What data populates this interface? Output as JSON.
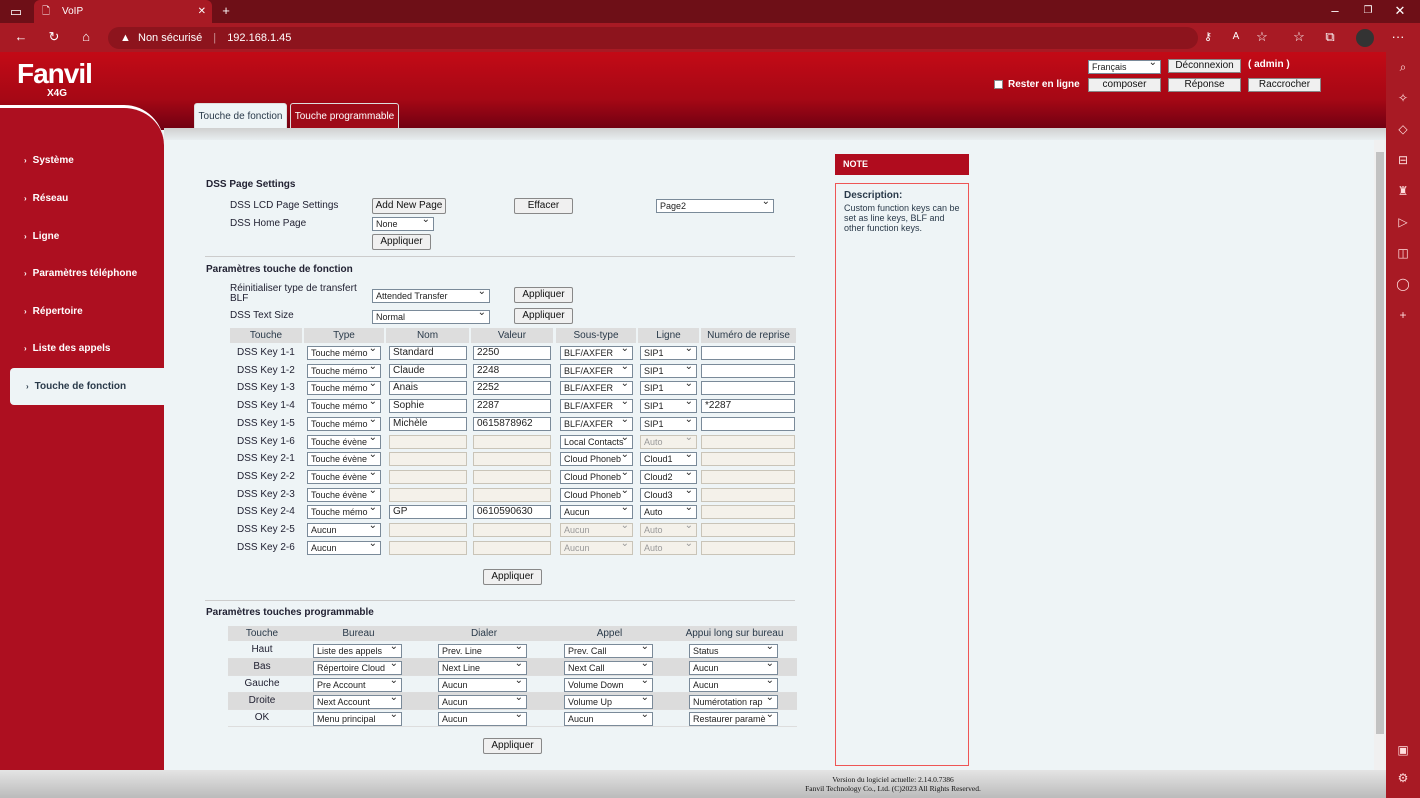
{
  "browser": {
    "tab_title": "VoIP",
    "security": "Non sécurisé",
    "url": "192.168.1.45"
  },
  "header": {
    "logo": "Fanvil",
    "model": "X4G",
    "language": "Français",
    "logout": "Déconnexion",
    "user": "( admin )",
    "stay_online": "Rester en ligne",
    "dial": "composer",
    "answer": "Réponse",
    "hangup": "Raccrocher"
  },
  "tabs": [
    {
      "label": "Touche de fonction"
    },
    {
      "label": "Touche programmable"
    }
  ],
  "sidebar": {
    "items": [
      {
        "label": "Système"
      },
      {
        "label": "Réseau"
      },
      {
        "label": "Ligne"
      },
      {
        "label": "Paramètres téléphone"
      },
      {
        "label": "Répertoire"
      },
      {
        "label": "Liste des appels"
      },
      {
        "label": "Touche de fonction"
      }
    ]
  },
  "dss_page": {
    "title": "DSS Page Settings",
    "lcd_label": "DSS LCD Page Settings",
    "add_page": "Add New Page",
    "clear": "Effacer",
    "page_select": "Page2",
    "home_label": "DSS Home Page",
    "home_value": "None",
    "apply": "Appliquer"
  },
  "fkey": {
    "title": "Paramètres touche de fonction",
    "blf_label": "Réinitialiser type de transfert BLF",
    "blf_value": "Attended Transfer",
    "text_size_label": "DSS Text Size",
    "text_size_value": "Normal",
    "apply": "Appliquer",
    "columns": [
      "Touche",
      "Type",
      "Nom",
      "Valeur",
      "Sous-type",
      "Ligne",
      "Numéro de reprise"
    ],
    "rows": [
      {
        "key": "DSS Key 1-1",
        "type": "Touche mémo",
        "name": "Standard",
        "value": "2250",
        "subtype": "BLF/AXFER",
        "line": "SIP1",
        "pickup": "",
        "enabled": true
      },
      {
        "key": "DSS Key 1-2",
        "type": "Touche mémo",
        "name": "Claude",
        "value": "2248",
        "subtype": "BLF/AXFER",
        "line": "SIP1",
        "pickup": "",
        "enabled": true
      },
      {
        "key": "DSS Key 1-3",
        "type": "Touche mémo",
        "name": "Anais",
        "value": "2252",
        "subtype": "BLF/AXFER",
        "line": "SIP1",
        "pickup": "",
        "enabled": true
      },
      {
        "key": "DSS Key 1-4",
        "type": "Touche mémo",
        "name": "Sophie",
        "value": "2287",
        "subtype": "BLF/AXFER",
        "line": "SIP1",
        "pickup": "*2287",
        "enabled": true
      },
      {
        "key": "DSS Key 1-5",
        "type": "Touche mémo",
        "name": "Michèle",
        "value": "0615878962",
        "subtype": "BLF/AXFER",
        "line": "SIP1",
        "pickup": "",
        "enabled": true
      },
      {
        "key": "DSS Key 1-6",
        "type": "Touche évène",
        "name": "",
        "value": "",
        "subtype": "Local Contacts",
        "line": "Auto",
        "pickup": "",
        "enabled": false,
        "line_disabled": true
      },
      {
        "key": "DSS Key 2-1",
        "type": "Touche évène",
        "name": "",
        "value": "",
        "subtype": "Cloud Phoneb",
        "line": "Cloud1",
        "pickup": "",
        "enabled": false
      },
      {
        "key": "DSS Key 2-2",
        "type": "Touche évène",
        "name": "",
        "value": "",
        "subtype": "Cloud Phoneb",
        "line": "Cloud2",
        "pickup": "",
        "enabled": false
      },
      {
        "key": "DSS Key 2-3",
        "type": "Touche évène",
        "name": "",
        "value": "",
        "subtype": "Cloud Phoneb",
        "line": "Cloud3",
        "pickup": "",
        "enabled": false
      },
      {
        "key": "DSS Key 2-4",
        "type": "Touche mémo",
        "name": "GP",
        "value": "0610590630",
        "subtype": "Aucun",
        "line": "Auto",
        "pickup": "",
        "enabled": true,
        "pickup_disabled": true
      },
      {
        "key": "DSS Key 2-5",
        "type": "Aucun",
        "name": "",
        "value": "",
        "subtype": "Aucun",
        "line": "Auto",
        "pickup": "",
        "enabled": false,
        "sub_disabled": true,
        "line_disabled": true
      },
      {
        "key": "DSS Key 2-6",
        "type": "Aucun",
        "name": "",
        "value": "",
        "subtype": "Aucun",
        "line": "Auto",
        "pickup": "",
        "enabled": false,
        "sub_disabled": true,
        "line_disabled": true
      }
    ]
  },
  "softkeys": {
    "title": "Paramètres touches programmable",
    "apply": "Appliquer",
    "columns": [
      "Touche",
      "Bureau",
      "Dialer",
      "Appel",
      "Appui long sur bureau"
    ],
    "rows": [
      {
        "key": "Haut",
        "desktop": "Liste des appels",
        "dialer": "Prev. Line",
        "call": "Prev. Call",
        "long": "Status"
      },
      {
        "key": "Bas",
        "desktop": "Répertoire Cloud",
        "dialer": "Next Line",
        "call": "Next Call",
        "long": "Aucun"
      },
      {
        "key": "Gauche",
        "desktop": "Pre Account",
        "dialer": "Aucun",
        "call": "Volume Down",
        "long": "Aucun"
      },
      {
        "key": "Droite",
        "desktop": "Next Account",
        "dialer": "Aucun",
        "call": "Volume Up",
        "long": "Numérotation rap"
      },
      {
        "key": "OK",
        "desktop": "Menu principal",
        "dialer": "Aucun",
        "call": "Aucun",
        "long": "Restaurer paramè"
      }
    ]
  },
  "note": {
    "title": "NOTE",
    "heading": "Description:",
    "text": "Custom function keys can be set as line keys, BLF and other function keys."
  },
  "footer": {
    "version": "Version du logiciel actuelle: 2.14.0.7386",
    "copyright": "Fanvil Technology Co., Ltd. (C)2023 All Rights Reserved."
  },
  "colors": {
    "brand": "#b00c1e",
    "content_bg": "#eef4f6"
  }
}
